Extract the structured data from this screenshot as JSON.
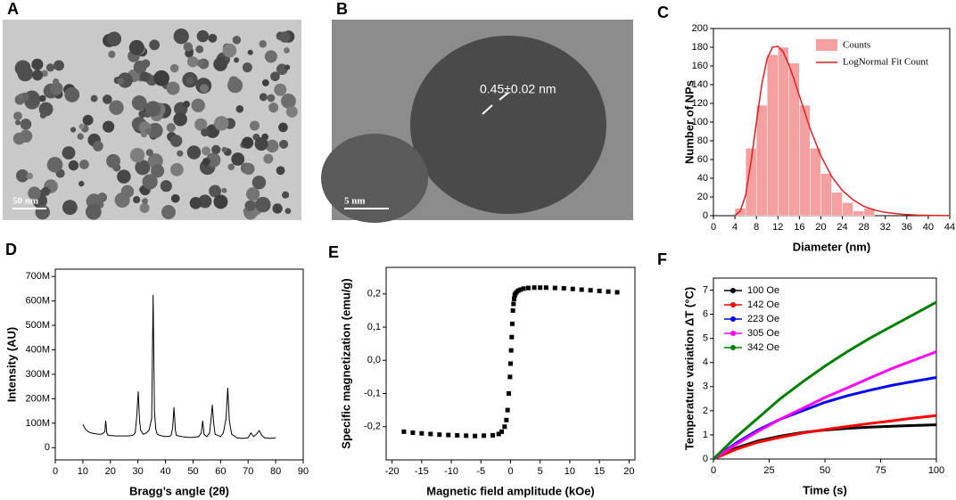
{
  "images": [
    {
      "panel": "A",
      "scale_bar": "50 nm"
    },
    {
      "panel": "B",
      "scale_bar": "5 nm",
      "annotation": "0.45±0.02 nm"
    }
  ],
  "chart_data": [
    {
      "type": "histogram",
      "panel": "C",
      "xlabel": "Diameter (nm)",
      "ylabel": "Number of NPs",
      "name": "Counts",
      "color": "#f4a0a0",
      "bins": [
        4,
        6,
        8,
        10,
        12,
        14,
        16,
        18,
        20,
        22,
        24,
        26,
        28,
        30
      ],
      "values": [
        8,
        72,
        118,
        172,
        180,
        163,
        118,
        72,
        45,
        25,
        14,
        5,
        8
      ],
      "fit": {
        "name": "LogNormal Fit Count",
        "color": "#e02020",
        "x": [
          4,
          5,
          6,
          7,
          8,
          9,
          10,
          11,
          12,
          13,
          14,
          15,
          16,
          18,
          20,
          22,
          24,
          26,
          28,
          30,
          32,
          35,
          38,
          41,
          44
        ],
        "values": [
          0,
          5,
          22,
          58,
          100,
          140,
          168,
          180,
          181,
          175,
          162,
          146,
          128,
          93,
          64,
          42,
          27,
          17,
          10,
          6,
          3.5,
          1.5,
          0.6,
          0.2,
          0.1
        ]
      },
      "xlim": [
        0,
        44
      ],
      "xticks": [
        0,
        4,
        8,
        12,
        16,
        20,
        24,
        28,
        32,
        36,
        40,
        44
      ],
      "ylim": [
        0,
        200
      ],
      "yticks": [
        0,
        20,
        40,
        60,
        80,
        100,
        120,
        140,
        160,
        180,
        200
      ]
    },
    {
      "type": "line",
      "panel": "D",
      "xlabel": "Bragg’s angle (2θ)",
      "ylabel": "Intensity (AU)",
      "color": "#000000",
      "x": [
        10,
        11,
        12,
        13,
        14,
        15,
        16,
        17,
        18,
        18.3,
        18.7,
        19,
        20,
        22,
        24,
        26,
        28,
        29,
        29.6,
        30.1,
        30.6,
        31,
        32,
        33,
        34,
        35,
        35.5,
        36,
        36.5,
        37,
        38,
        40,
        42,
        42.6,
        43.1,
        43.6,
        44,
        46,
        48,
        50,
        52,
        53,
        53.5,
        54,
        55,
        56,
        56.5,
        57,
        57.5,
        58,
        60,
        61,
        62,
        62.6,
        63.2,
        64,
        66,
        68,
        70,
        71,
        72,
        73,
        74,
        75,
        76,
        78,
        80
      ],
      "values": [
        95000000,
        75000000,
        65000000,
        60000000,
        58000000,
        56000000,
        55000000,
        56000000,
        65000000,
        110000000,
        60000000,
        52000000,
        50000000,
        48000000,
        48000000,
        48000000,
        50000000,
        60000000,
        130000000,
        230000000,
        110000000,
        70000000,
        55000000,
        60000000,
        70000000,
        120000000,
        625000000,
        150000000,
        75000000,
        55000000,
        50000000,
        45000000,
        48000000,
        80000000,
        165000000,
        70000000,
        50000000,
        45000000,
        42000000,
        42000000,
        45000000,
        60000000,
        110000000,
        55000000,
        45000000,
        60000000,
        110000000,
        175000000,
        100000000,
        55000000,
        45000000,
        60000000,
        120000000,
        245000000,
        110000000,
        55000000,
        40000000,
        38000000,
        40000000,
        60000000,
        45000000,
        55000000,
        70000000,
        50000000,
        40000000,
        38000000,
        40000000
      ],
      "xlim": [
        0,
        90
      ],
      "xticks": [
        0,
        10,
        20,
        30,
        40,
        50,
        60,
        70,
        80,
        90
      ],
      "ylim": [
        -50000000,
        730000000
      ],
      "yticks": [
        0,
        {
          "value": 100000000,
          "label": "100M"
        },
        {
          "value": 200000000,
          "label": "200M"
        },
        {
          "value": 300000000,
          "label": "300M"
        },
        {
          "value": 400000000,
          "label": "400M"
        },
        {
          "value": 500000000,
          "label": "500M"
        },
        {
          "value": 600000000,
          "label": "600M"
        },
        {
          "value": 700000000,
          "label": "700M"
        }
      ]
    },
    {
      "type": "scatter",
      "panel": "E",
      "xlabel": "Magnetic field amplitude (kOe)",
      "ylabel": "Specific magnetization (emu/g)",
      "color": "#000000",
      "x": [
        -18,
        -16.5,
        -15,
        -13.5,
        -12,
        -10.5,
        -9,
        -7.5,
        -6,
        -4.5,
        -3,
        -2,
        -1.5,
        -1,
        -0.7,
        -0.5,
        -0.3,
        -0.1,
        0,
        0.1,
        0.2,
        0.3,
        0.4,
        0.5,
        0.6,
        0.7,
        0.8,
        1,
        1.3,
        1.7,
        2.2,
        3,
        4,
        5,
        6,
        7.5,
        9,
        10.5,
        12,
        13.5,
        15,
        16.5,
        18
      ],
      "values": [
        -0.215,
        -0.218,
        -0.22,
        -0.222,
        -0.224,
        -0.225,
        -0.226,
        -0.227,
        -0.228,
        -0.227,
        -0.226,
        -0.222,
        -0.215,
        -0.2,
        -0.18,
        -0.15,
        -0.1,
        -0.05,
        -0.01,
        0.03,
        0.07,
        0.11,
        0.15,
        0.17,
        0.185,
        0.195,
        0.2,
        0.205,
        0.21,
        0.213,
        0.216,
        0.218,
        0.219,
        0.219,
        0.219,
        0.218,
        0.217,
        0.215,
        0.213,
        0.211,
        0.209,
        0.207,
        0.205
      ],
      "xlim": [
        -21,
        21
      ],
      "xticks": [
        -20,
        -15,
        -10,
        -5,
        0,
        5,
        10,
        15,
        20
      ],
      "ylim": [
        -0.3,
        0.28
      ],
      "yticks": [
        {
          "value": -0.2,
          "label": "-0,2"
        },
        {
          "value": -0.1,
          "label": "-0,1"
        },
        {
          "value": 0,
          "label": "0,0"
        },
        {
          "value": 0.1,
          "label": "0,1"
        },
        {
          "value": 0.2,
          "label": "0,2"
        }
      ]
    },
    {
      "type": "line",
      "panel": "F",
      "xlabel": "Time (s)",
      "ylabel": "Temperature variation ΔT (°C)",
      "legend": "upper left",
      "x": [
        0,
        10,
        20,
        30,
        40,
        50,
        60,
        70,
        80,
        90,
        100
      ],
      "series": [
        {
          "name": "100 Oe",
          "color": "#000000",
          "values": [
            0,
            0.45,
            0.75,
            0.95,
            1.1,
            1.2,
            1.27,
            1.32,
            1.36,
            1.39,
            1.42
          ]
        },
        {
          "name": "142 Oe",
          "color": "#ff0000",
          "values": [
            0,
            0.4,
            0.7,
            0.9,
            1.08,
            1.22,
            1.35,
            1.47,
            1.58,
            1.7,
            1.8
          ]
        },
        {
          "name": "223 Oe",
          "color": "#0000ff",
          "values": [
            0,
            0.65,
            1.2,
            1.65,
            2.0,
            2.35,
            2.62,
            2.85,
            3.05,
            3.22,
            3.38
          ]
        },
        {
          "name": "305 Oe",
          "color": "#ff00ff",
          "values": [
            0,
            0.6,
            1.15,
            1.65,
            2.1,
            2.55,
            2.95,
            3.35,
            3.75,
            4.1,
            4.45
          ]
        },
        {
          "name": "342 Oe",
          "color": "#008000",
          "values": [
            0,
            0.9,
            1.7,
            2.5,
            3.2,
            3.85,
            4.45,
            5.0,
            5.5,
            6.0,
            6.5
          ]
        }
      ],
      "xlim": [
        0,
        100
      ],
      "xticks": [
        0,
        25,
        50,
        75,
        100
      ],
      "ylim": [
        0,
        7.5
      ],
      "yticks": [
        0,
        1,
        2,
        3,
        4,
        5,
        6,
        7
      ]
    }
  ]
}
